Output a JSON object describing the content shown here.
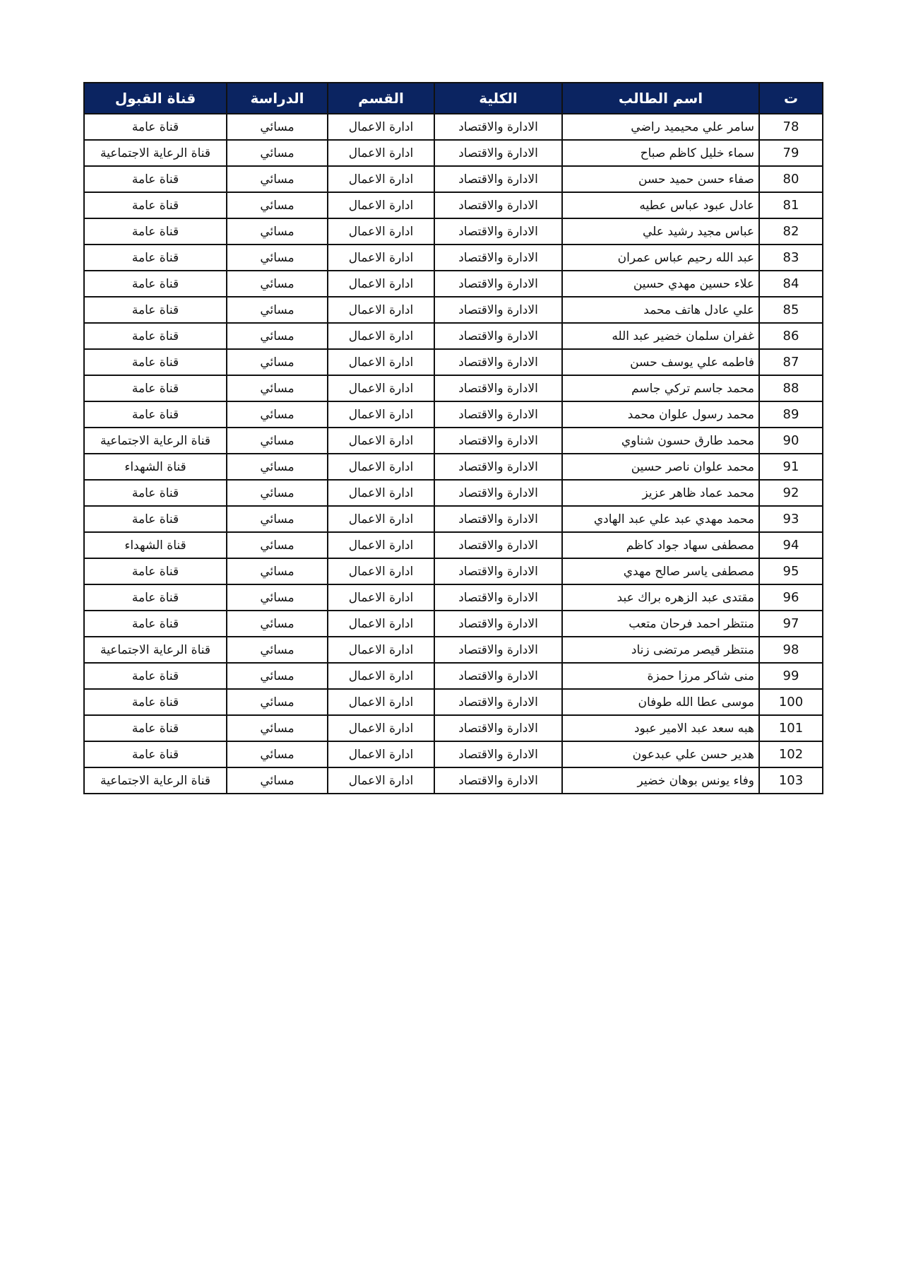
{
  "table": {
    "headers": [
      "ت",
      "اسم الطالب",
      "الكلية",
      "القسم",
      "الدراسة",
      "قناة القبول"
    ],
    "header_color": "#0b2461",
    "rows": [
      [
        "78",
        "سامر علي محيميد راضي",
        "الادارة والاقتصاد",
        "ادارة الاعمال",
        "مسائي",
        "قناة عامة"
      ],
      [
        "79",
        "سماء خليل كاظم صباح",
        "الادارة والاقتصاد",
        "ادارة الاعمال",
        "مسائي",
        "قناة الرعاية الاجتماعية"
      ],
      [
        "80",
        "صفاء حسن حميد حسن",
        "الادارة والاقتصاد",
        "ادارة الاعمال",
        "مسائي",
        "قناة عامة"
      ],
      [
        "81",
        "عادل عبود عباس عطيه",
        "الادارة والاقتصاد",
        "ادارة الاعمال",
        "مسائي",
        "قناة عامة"
      ],
      [
        "82",
        "عباس مجيد رشيد علي",
        "الادارة والاقتصاد",
        "ادارة الاعمال",
        "مسائي",
        "قناة عامة"
      ],
      [
        "83",
        "عبد الله رحيم عباس عمران",
        "الادارة والاقتصاد",
        "ادارة الاعمال",
        "مسائي",
        "قناة عامة"
      ],
      [
        "84",
        "علاء حسين مهدي حسين",
        "الادارة والاقتصاد",
        "ادارة الاعمال",
        "مسائي",
        "قناة عامة"
      ],
      [
        "85",
        "علي عادل هاتف محمد",
        "الادارة والاقتصاد",
        "ادارة الاعمال",
        "مسائي",
        "قناة عامة"
      ],
      [
        "86",
        "غفران سلمان خضير عبد الله",
        "الادارة والاقتصاد",
        "ادارة الاعمال",
        "مسائي",
        "قناة عامة"
      ],
      [
        "87",
        "فاطمه علي يوسف حسن",
        "الادارة والاقتصاد",
        "ادارة الاعمال",
        "مسائي",
        "قناة عامة"
      ],
      [
        "88",
        "محمد جاسم تركي جاسم",
        "الادارة والاقتصاد",
        "ادارة الاعمال",
        "مسائي",
        "قناة عامة"
      ],
      [
        "89",
        "محمد رسول علوان محمد",
        "الادارة والاقتصاد",
        "ادارة الاعمال",
        "مسائي",
        "قناة عامة"
      ],
      [
        "90",
        "محمد طارق حسون شناوي",
        "الادارة والاقتصاد",
        "ادارة الاعمال",
        "مسائي",
        "قناة الرعاية الاجتماعية"
      ],
      [
        "91",
        "محمد علوان ناصر حسين",
        "الادارة والاقتصاد",
        "ادارة الاعمال",
        "مسائي",
        "قناة الشهداء"
      ],
      [
        "92",
        "محمد عماد ظاهر عزيز",
        "الادارة والاقتصاد",
        "ادارة الاعمال",
        "مسائي",
        "قناة عامة"
      ],
      [
        "93",
        "محمد مهدي عبد علي عبد الهادي",
        "الادارة والاقتصاد",
        "ادارة الاعمال",
        "مسائي",
        "قناة عامة"
      ],
      [
        "94",
        "مصطفى سهاد جواد كاظم",
        "الادارة والاقتصاد",
        "ادارة الاعمال",
        "مسائي",
        "قناة الشهداء"
      ],
      [
        "95",
        "مصطفى ياسر صالح مهدي",
        "الادارة والاقتصاد",
        "ادارة الاعمال",
        "مسائي",
        "قناة عامة"
      ],
      [
        "96",
        "مقتدى عبد الزهره براك عبد",
        "الادارة والاقتصاد",
        "ادارة الاعمال",
        "مسائي",
        "قناة عامة"
      ],
      [
        "97",
        "منتظر احمد فرحان متعب",
        "الادارة والاقتصاد",
        "ادارة الاعمال",
        "مسائي",
        "قناة عامة"
      ],
      [
        "98",
        "منتظر قيصر مرتضى زناد",
        "الادارة والاقتصاد",
        "ادارة الاعمال",
        "مسائي",
        "قناة الرعاية الاجتماعية"
      ],
      [
        "99",
        "منى شاكر مرزا حمزة",
        "الادارة والاقتصاد",
        "ادارة الاعمال",
        "مسائي",
        "قناة عامة"
      ],
      [
        "100",
        "موسى عطا الله طوفان",
        "الادارة والاقتصاد",
        "ادارة الاعمال",
        "مسائي",
        "قناة عامة"
      ],
      [
        "101",
        "هبه سعد عبد الامير عبود",
        "الادارة والاقتصاد",
        "ادارة الاعمال",
        "مسائي",
        "قناة عامة"
      ],
      [
        "102",
        "هدير حسن علي عبدعون",
        "الادارة والاقتصاد",
        "ادارة الاعمال",
        "مسائي",
        "قناة عامة"
      ],
      [
        "103",
        "وفاء يونس بوهان خضير",
        "الادارة والاقتصاد",
        "ادارة الاعمال",
        "مسائي",
        "قناة الرعاية الاجتماعية"
      ]
    ]
  }
}
